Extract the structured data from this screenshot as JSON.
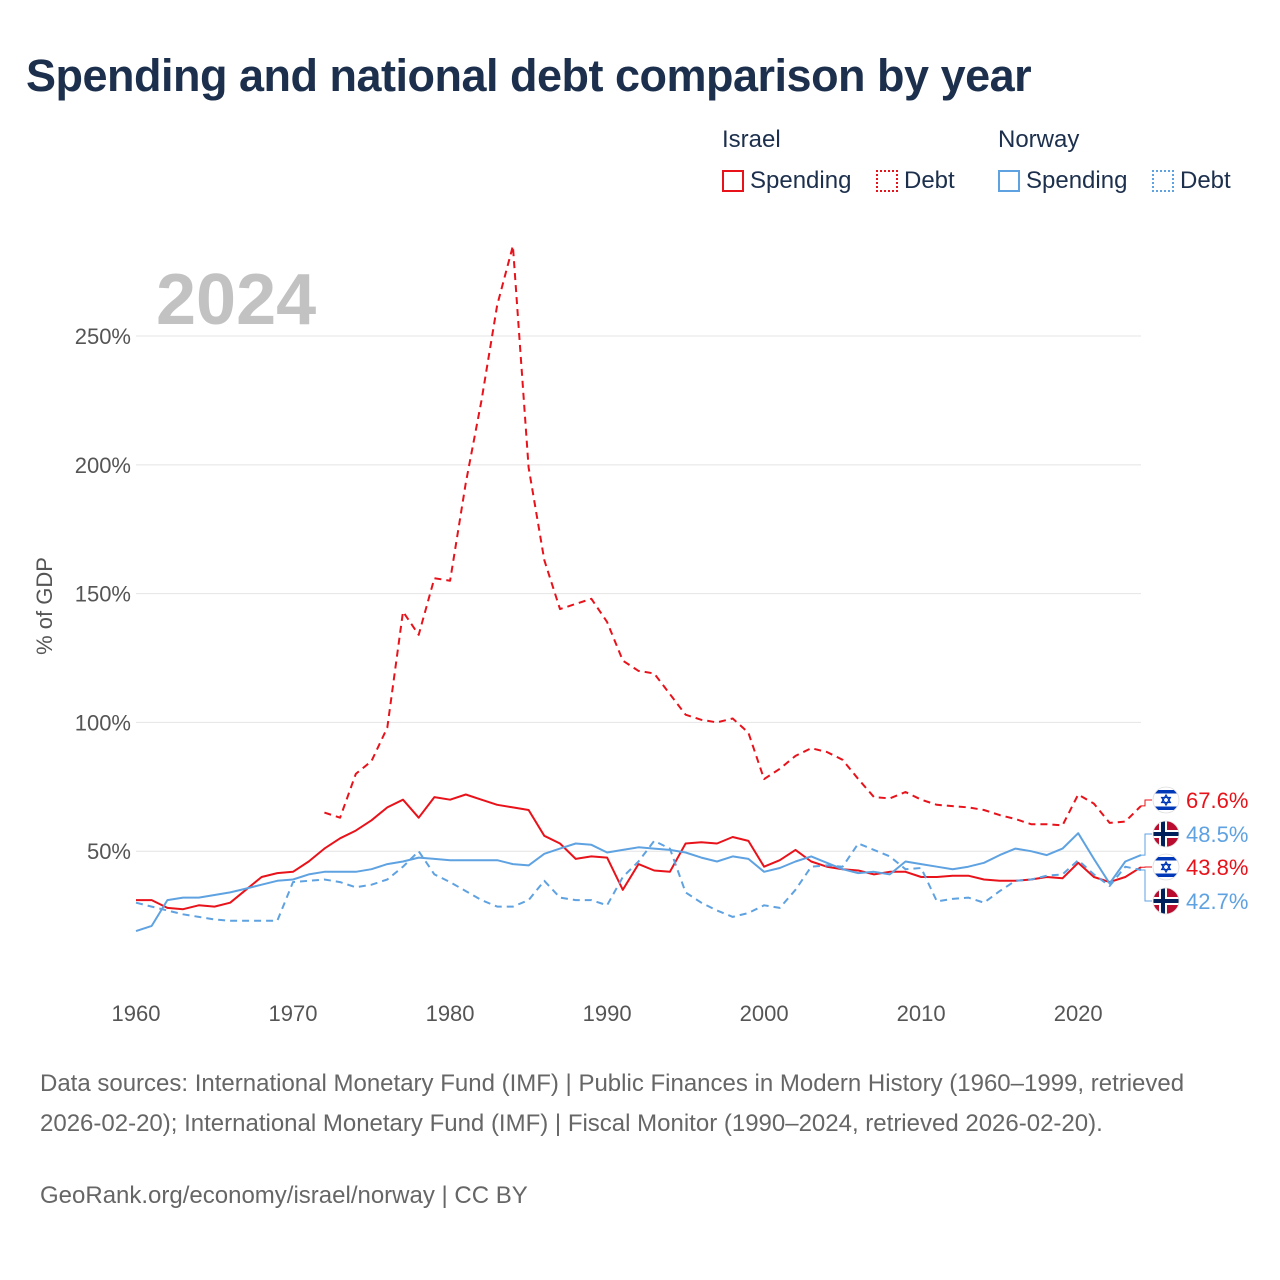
{
  "title": "Spending and national debt comparison by year",
  "colors": {
    "israel": "#e8121a",
    "norway": "#5fa2e1",
    "grid": "#e4e4e4",
    "text": "#1c2f4c",
    "muted": "#666666"
  },
  "legend": {
    "groups": [
      {
        "name": "Israel",
        "spending_label": "Spending",
        "debt_label": "Debt"
      },
      {
        "name": "Norway",
        "spending_label": "Spending",
        "debt_label": "Debt"
      }
    ]
  },
  "footer": {
    "sources": "Data sources: International Monetary Fund (IMF) | Public Finances in Modern History (1960–1999, retrieved 2026-02-20); International Monetary Fund (IMF) | Fiscal Monitor (1990–2024, retrieved 2026-02-20).",
    "credit": "GeoRank.org/economy/israel/norway | CC BY"
  },
  "chart_data": {
    "type": "line",
    "title": "Spending and national debt comparison by year",
    "year_label": "2024",
    "ylabel": "% of GDP",
    "xlabel": "",
    "xlim": [
      1960,
      2024
    ],
    "ylim": [
      0,
      290
    ],
    "x_ticks": [
      1960,
      1970,
      1980,
      1990,
      2000,
      2010,
      2020
    ],
    "x_tick_labels": [
      "1960",
      "1970",
      "1980",
      "1990",
      "2000",
      "2010",
      "2020"
    ],
    "y_ticks": [
      50,
      100,
      150,
      200,
      250
    ],
    "y_tick_labels": [
      "50%",
      "100%",
      "150%",
      "200%",
      "250%"
    ],
    "grid": true,
    "series": [
      {
        "name": "Israel Spending",
        "country": "Israel",
        "measure": "Spending",
        "style": "solid",
        "color": "#e8121a",
        "x": [
          1960,
          1961,
          1962,
          1963,
          1964,
          1965,
          1966,
          1967,
          1968,
          1969,
          1970,
          1971,
          1972,
          1973,
          1974,
          1975,
          1976,
          1977,
          1978,
          1979,
          1980,
          1981,
          1982,
          1983,
          1984,
          1985,
          1986,
          1987,
          1988,
          1989,
          1990,
          1991,
          1992,
          1993,
          1994,
          1995,
          1996,
          1997,
          1998,
          1999,
          2000,
          2001,
          2002,
          2003,
          2004,
          2005,
          2006,
          2007,
          2008,
          2009,
          2010,
          2011,
          2012,
          2013,
          2014,
          2015,
          2016,
          2017,
          2018,
          2019,
          2020,
          2021,
          2022,
          2023,
          2024
        ],
        "values": [
          31,
          31,
          28,
          27.5,
          29,
          28.5,
          30,
          35,
          40,
          41.5,
          42,
          46,
          51,
          55,
          58,
          62,
          67,
          70,
          63,
          71,
          70,
          72,
          70,
          68,
          67,
          66,
          56,
          53,
          47,
          48,
          47.5,
          35,
          45,
          42.5,
          42,
          53,
          53.5,
          53,
          55.5,
          54,
          44,
          46.5,
          50.5,
          46,
          44,
          43,
          42.5,
          41,
          42,
          42,
          40,
          40,
          40.5,
          40.5,
          39,
          38.5,
          38.5,
          39,
          40,
          39.5,
          45.5,
          40,
          38,
          40,
          43.8
        ]
      },
      {
        "name": "Israel Debt",
        "country": "Israel",
        "measure": "Debt",
        "style": "dashed",
        "color": "#e8121a",
        "x": [
          1972,
          1973,
          1974,
          1975,
          1976,
          1977,
          1978,
          1979,
          1980,
          1981,
          1982,
          1983,
          1984,
          1985,
          1986,
          1987,
          1988,
          1989,
          1990,
          1991,
          1992,
          1993,
          1994,
          1995,
          1996,
          1997,
          1998,
          1999,
          2000,
          2001,
          2002,
          2003,
          2004,
          2005,
          2006,
          2007,
          2008,
          2009,
          2010,
          2011,
          2012,
          2013,
          2014,
          2015,
          2016,
          2017,
          2018,
          2019,
          2020,
          2021,
          2022,
          2023,
          2024
        ],
        "values": [
          65,
          63,
          80,
          85,
          98,
          143,
          134,
          156,
          155,
          193,
          225,
          262,
          285,
          199,
          163,
          144,
          146,
          148,
          139,
          124,
          120,
          119,
          111,
          103,
          101,
          100,
          101.5,
          96,
          78,
          82,
          87,
          90,
          88.5,
          85.5,
          78,
          71,
          70.5,
          73,
          70,
          68,
          67.5,
          67,
          66,
          64,
          62.5,
          60.5,
          60.5,
          60,
          72,
          68.5,
          61,
          61.5,
          67.6
        ]
      },
      {
        "name": "Norway Spending",
        "country": "Norway",
        "measure": "Spending",
        "style": "solid",
        "color": "#5fa2e1",
        "x": [
          1960,
          1961,
          1962,
          1963,
          1964,
          1965,
          1966,
          1967,
          1968,
          1969,
          1970,
          1971,
          1972,
          1973,
          1974,
          1975,
          1976,
          1977,
          1978,
          1979,
          1980,
          1981,
          1982,
          1983,
          1984,
          1985,
          1986,
          1987,
          1988,
          1989,
          1990,
          1991,
          1992,
          1993,
          1994,
          1995,
          1996,
          1997,
          1998,
          1999,
          2000,
          2001,
          2002,
          2003,
          2004,
          2005,
          2006,
          2007,
          2008,
          2009,
          2010,
          2011,
          2012,
          2013,
          2014,
          2015,
          2016,
          2017,
          2018,
          2019,
          2020,
          2021,
          2022,
          2023,
          2024
        ],
        "values": [
          19,
          21,
          31,
          32,
          32,
          33,
          34,
          35.5,
          37,
          38.5,
          39,
          41,
          42,
          42,
          42,
          43,
          45,
          46,
          47.5,
          47,
          46.5,
          46.5,
          46.5,
          46.5,
          45,
          44.5,
          49,
          51,
          53,
          52.5,
          49.5,
          50.5,
          51.5,
          51,
          50.5,
          49.5,
          47.5,
          46,
          48,
          47,
          42,
          43.5,
          46,
          48,
          45.5,
          43,
          41.5,
          42,
          41,
          46,
          45,
          44,
          43,
          44,
          45.5,
          48.5,
          51,
          50,
          48.5,
          51,
          57,
          47,
          37.5,
          46,
          48.5
        ]
      },
      {
        "name": "Norway Debt",
        "country": "Norway",
        "measure": "Debt",
        "style": "dashed",
        "color": "#5fa2e1",
        "x": [
          1960,
          1961,
          1962,
          1963,
          1964,
          1965,
          1966,
          1967,
          1968,
          1969,
          1970,
          1971,
          1972,
          1973,
          1974,
          1975,
          1976,
          1977,
          1978,
          1979,
          1980,
          1981,
          1982,
          1983,
          1984,
          1985,
          1986,
          1987,
          1988,
          1989,
          1990,
          1991,
          1992,
          1993,
          1994,
          1995,
          1996,
          1997,
          1998,
          1999,
          2000,
          2001,
          2002,
          2003,
          2004,
          2005,
          2006,
          2007,
          2008,
          2009,
          2010,
          2011,
          2012,
          2013,
          2014,
          2015,
          2016,
          2017,
          2018,
          2019,
          2020,
          2021,
          2022,
          2023,
          2024
        ],
        "values": [
          30,
          28.5,
          27,
          25.5,
          24.5,
          23.5,
          23,
          23,
          23,
          23,
          38,
          38.5,
          39,
          38,
          36,
          37,
          39,
          44,
          50,
          41,
          38,
          34.5,
          31,
          28.5,
          28.5,
          31,
          38.5,
          32,
          31,
          31,
          29,
          40,
          46,
          54,
          51,
          34,
          30,
          27,
          24.5,
          26,
          29,
          28,
          35,
          44,
          44.5,
          44,
          53,
          50.5,
          48,
          43,
          43.5,
          30.5,
          31.5,
          32,
          30,
          34.5,
          38.5,
          39,
          40.5,
          41,
          46.5,
          41,
          36.5,
          44,
          42.7
        ]
      }
    ],
    "end_labels": [
      {
        "country": "Israel",
        "measure": "Debt",
        "text": "67.6%",
        "flag": "israel-flag"
      },
      {
        "country": "Norway",
        "measure": "Spending",
        "text": "48.5%",
        "flag": "norway-flag"
      },
      {
        "country": "Israel",
        "measure": "Spending",
        "text": "43.8%",
        "flag": "israel-flag"
      },
      {
        "country": "Norway",
        "measure": "Debt",
        "text": "42.7%",
        "flag": "norway-flag"
      }
    ]
  }
}
